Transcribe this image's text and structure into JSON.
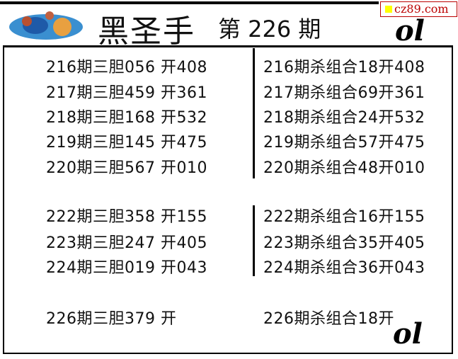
{
  "header": {
    "title": "黑圣手",
    "issue": "第 226 期",
    "badge": "cz89.com",
    "accent": "#b00000"
  },
  "left": [
    "216期三胆056 开408",
    "217期三胆459 开361",
    "218期三胆168 开532",
    "219期三胆145 开475",
    "220期三胆567 开010",
    "222期三胆358 开155",
    "223期三胆247 开405",
    "224期三胆019 开043",
    "226期三胆379 开"
  ],
  "right": [
    "216期杀组合18开408",
    "217期杀组合69开361",
    "218期杀组合24开532",
    "219期杀组合57开475",
    "220期杀组合48开010",
    "222期杀组合16开155",
    "223期杀组合35开405",
    "224期杀组合36开043",
    "226期杀组合18开"
  ],
  "decoration": "ol"
}
